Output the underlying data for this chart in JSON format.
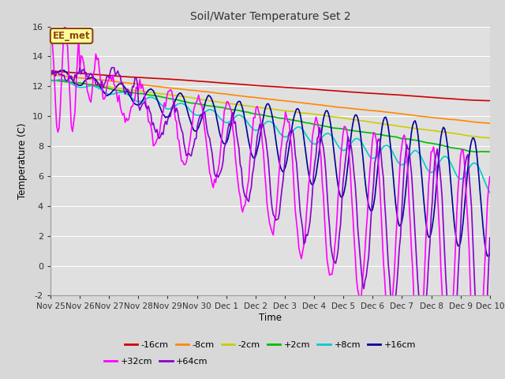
{
  "title": "Soil/Water Temperature Set 2",
  "xlabel": "Time",
  "ylabel": "Temperature (C)",
  "ylim": [
    -2,
    16
  ],
  "xlim": [
    0,
    15
  ],
  "fig_bg_color": "#d8d8d8",
  "plot_bg_color": "#e0e0e0",
  "annotation_text": "EE_met",
  "annotation_bg": "#ffff99",
  "annotation_border": "#8b4513",
  "xtick_labels": [
    "Nov 25",
    "Nov 26",
    "Nov 27",
    "Nov 28",
    "Nov 29",
    "Nov 30",
    "Dec 1",
    "Dec 2",
    "Dec 3",
    "Dec 4",
    "Dec 5",
    "Dec 6",
    "Dec 7",
    "Dec 8",
    "Dec 9",
    "Dec 10"
  ],
  "ytick_labels": [
    "-2",
    "0",
    "2",
    "4",
    "6",
    "8",
    "10",
    "12",
    "14",
    "16"
  ],
  "ytick_values": [
    -2,
    0,
    2,
    4,
    6,
    8,
    10,
    12,
    14,
    16
  ],
  "series": [
    {
      "label": "-16cm",
      "color": "#cc0000",
      "linewidth": 1.2
    },
    {
      "label": "-8cm",
      "color": "#ff8800",
      "linewidth": 1.2
    },
    {
      "label": "-2cm",
      "color": "#cccc00",
      "linewidth": 1.2
    },
    {
      "label": "+2cm",
      "color": "#00bb00",
      "linewidth": 1.2
    },
    {
      "label": "+8cm",
      "color": "#00cccc",
      "linewidth": 1.2
    },
    {
      "label": "+16cm",
      "color": "#000099",
      "linewidth": 1.2
    },
    {
      "label": "+32cm",
      "color": "#ff00ff",
      "linewidth": 1.2
    },
    {
      "label": "+64cm",
      "color": "#8800cc",
      "linewidth": 1.2
    }
  ],
  "grid_color": "#ffffff",
  "grid_linewidth": 0.8
}
